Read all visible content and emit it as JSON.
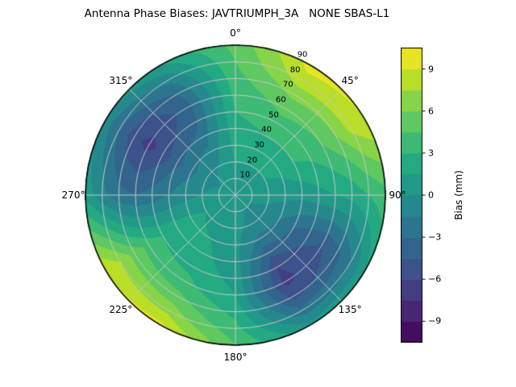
{
  "title": "Antenna Phase Biases: JAVTRIUMPH_3A   NONE SBAS-L1",
  "chart_data": {
    "type": "heatmap",
    "projection": "polar",
    "title": "Antenna Phase Biases: JAVTRIUMPH_3A   NONE SBAS-L1",
    "angle_convention": "azimuth degrees clockwise from top (0 = up)",
    "radial_axis": "zenith angle, 0 at center to 90 at rim",
    "theta_labels": [
      {
        "label": "0°",
        "angle": 0
      },
      {
        "label": "45°",
        "angle": 45
      },
      {
        "label": "90°",
        "angle": 90
      },
      {
        "label": "135°",
        "angle": 135
      },
      {
        "label": "180°",
        "angle": 180
      },
      {
        "label": "225°",
        "angle": 225
      },
      {
        "label": "270°",
        "angle": 270
      },
      {
        "label": "315°",
        "angle": 315
      }
    ],
    "radial_ticks": [
      {
        "label": "10",
        "zenith": 10
      },
      {
        "label": "20",
        "zenith": 20
      },
      {
        "label": "30",
        "zenith": 30
      },
      {
        "label": "40",
        "zenith": 40
      },
      {
        "label": "50",
        "zenith": 50
      },
      {
        "label": "60",
        "zenith": 60
      },
      {
        "label": "70",
        "zenith": 70
      },
      {
        "label": "80",
        "zenith": 80
      },
      {
        "label": "90",
        "zenith": 90
      }
    ],
    "radial_label_angle_deg": 25.5,
    "azimuth_deg": [
      0,
      30,
      60,
      90,
      120,
      150,
      180,
      210,
      240,
      270,
      300,
      330
    ],
    "zenith_deg": [
      0,
      10,
      20,
      30,
      40,
      50,
      60,
      70,
      80,
      90
    ],
    "bias_mm": [
      [
        0.5,
        1.0,
        1.5,
        2.0,
        2.5,
        3.0,
        3.5,
        4.0,
        4.5,
        5.0
      ],
      [
        0.5,
        1.0,
        1.5,
        2.0,
        3.0,
        4.0,
        5.0,
        6.5,
        8.5,
        9.5
      ],
      [
        0.5,
        1.0,
        1.5,
        2.0,
        3.0,
        3.5,
        4.5,
        6.0,
        8.0,
        9.0
      ],
      [
        0.5,
        0.5,
        0.5,
        0.5,
        0.5,
        1.0,
        1.5,
        2.0,
        3.0,
        4.0
      ],
      [
        0.5,
        0.0,
        -0.5,
        -1.5,
        -3.0,
        -4.0,
        -4.5,
        -3.5,
        -1.5,
        1.5
      ],
      [
        0.5,
        0.0,
        -0.5,
        -2.0,
        -4.0,
        -6.0,
        -6.5,
        -5.0,
        -2.5,
        0.5
      ],
      [
        0.5,
        0.5,
        0.5,
        0.5,
        0.5,
        1.0,
        1.5,
        2.5,
        3.5,
        4.5
      ],
      [
        0.5,
        0.5,
        1.0,
        1.5,
        2.0,
        2.5,
        3.5,
        5.0,
        7.0,
        9.5
      ],
      [
        0.5,
        1.0,
        1.5,
        2.0,
        2.5,
        3.0,
        4.0,
        5.5,
        7.5,
        9.0
      ],
      [
        0.5,
        0.5,
        0.0,
        -0.5,
        -1.5,
        -2.5,
        -3.0,
        -2.5,
        -1.0,
        1.0
      ],
      [
        0.5,
        0.0,
        -0.5,
        -2.0,
        -3.5,
        -5.5,
        -6.5,
        -5.5,
        -3.0,
        -0.5
      ],
      [
        0.5,
        0.5,
        0.0,
        -1.0,
        -2.5,
        -3.5,
        -4.0,
        -3.0,
        -1.0,
        1.5
      ]
    ],
    "colorbar": {
      "label": "Bias (mm)",
      "ticks": [
        "9",
        "6",
        "3",
        "0",
        "−3",
        "−6",
        "−9"
      ],
      "tick_values": [
        9,
        6,
        3,
        0,
        -3,
        -6,
        -9
      ],
      "vmin": -10.5,
      "vmax": 10.5,
      "levels_step": 1.5
    },
    "colormap": "viridis",
    "colormap_stops": [
      [
        0.0,
        "#440154"
      ],
      [
        0.1,
        "#482475"
      ],
      [
        0.2,
        "#414487"
      ],
      [
        0.3,
        "#355f8d"
      ],
      [
        0.4,
        "#2a788e"
      ],
      [
        0.5,
        "#21918c"
      ],
      [
        0.6,
        "#22a884"
      ],
      [
        0.7,
        "#44bf70"
      ],
      [
        0.8,
        "#7ad151"
      ],
      [
        0.9,
        "#bddf26"
      ],
      [
        1.0,
        "#fde725"
      ]
    ],
    "grid": {
      "on": true,
      "grid_color": "#c8c8c8",
      "spoke_step_deg": 45,
      "ring_step_deg": 10
    }
  }
}
